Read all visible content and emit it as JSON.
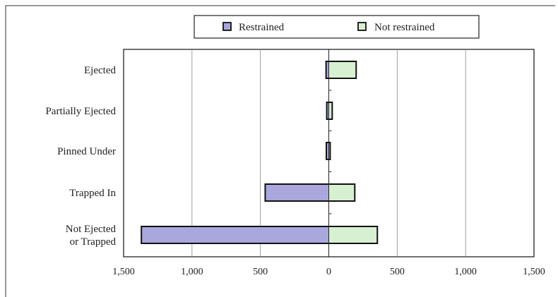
{
  "chart_data": {
    "type": "bar",
    "orientation": "horizontal-diverging",
    "categories": [
      [
        "Ejected"
      ],
      [
        "Partially Ejected"
      ],
      [
        "Pinned Under"
      ],
      [
        "Trapped In"
      ],
      [
        "Not Ejected",
        "or Trapped"
      ]
    ],
    "series": [
      {
        "name": "Restrained",
        "direction": "left",
        "color": "#a9a7dc",
        "values": [
          20,
          15,
          18,
          465,
          1370
        ]
      },
      {
        "name": "Not restrained",
        "direction": "right",
        "color": "#d8f0d2",
        "values": [
          200,
          25,
          10,
          190,
          355
        ]
      }
    ],
    "xlim": [
      -1500,
      1500
    ],
    "tick_values": [
      -1500,
      -1000,
      -500,
      0,
      500,
      1000,
      1500
    ],
    "tick_labels": [
      "1,500",
      "1,000",
      "500",
      "0",
      "500",
      "1,000",
      "1,500"
    ],
    "grid": true,
    "legend_position": "top",
    "title": "",
    "xlabel": "",
    "ylabel": ""
  }
}
